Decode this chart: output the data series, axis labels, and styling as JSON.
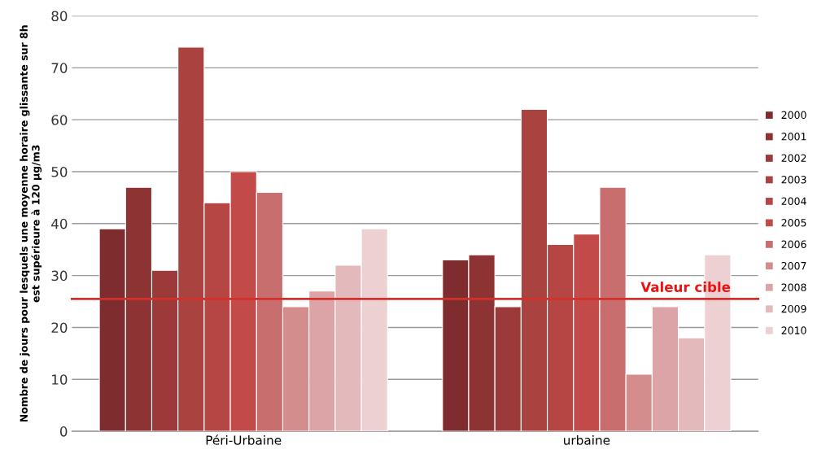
{
  "chart_data": {
    "type": "bar",
    "ylabel": "Nombre de jours pour lesquels une moyenne horaire glissante sur 8h\nest supérieure à 120 µg/m3",
    "categories": [
      "Péri-Urbaine",
      "urbaine"
    ],
    "series": [
      {
        "name": "2000",
        "color": "#7e2c2e",
        "values": [
          39,
          33
        ]
      },
      {
        "name": "2001",
        "color": "#8e3334",
        "values": [
          47,
          34
        ]
      },
      {
        "name": "2002",
        "color": "#9c3a3a",
        "values": [
          31,
          24
        ]
      },
      {
        "name": "2003",
        "color": "#aa4240",
        "values": [
          74,
          62
        ]
      },
      {
        "name": "2004",
        "color": "#b64644",
        "values": [
          44,
          36
        ]
      },
      {
        "name": "2005",
        "color": "#c24a49",
        "values": [
          50,
          38
        ]
      },
      {
        "name": "2006",
        "color": "#c86e6e",
        "values": [
          46,
          47
        ]
      },
      {
        "name": "2007",
        "color": "#d48d8d",
        "values": [
          24,
          11
        ]
      },
      {
        "name": "2008",
        "color": "#dca4a6",
        "values": [
          27,
          24
        ]
      },
      {
        "name": "2009",
        "color": "#e3b9bc",
        "values": [
          32,
          18
        ]
      },
      {
        "name": "2010",
        "color": "#ecd0d2",
        "values": [
          39,
          34
        ]
      }
    ],
    "ylim": [
      0,
      80
    ],
    "yticks": [
      0,
      10,
      20,
      30,
      40,
      50,
      60,
      70,
      80
    ],
    "grid": "y",
    "legend": "right",
    "ref_lines": [
      {
        "axis": "y",
        "value": 25.5,
        "label": "Valeur cible",
        "color": "#d2312c"
      }
    ]
  }
}
